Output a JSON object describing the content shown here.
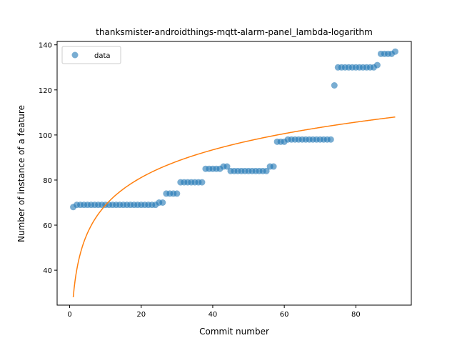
{
  "chart_data": {
    "type": "scatter",
    "title": "thanksmister-androidthings-mqtt-alarm-panel_lambda-logarithm",
    "xlabel": "Commit number",
    "ylabel": "Number of instance of a feature",
    "xlim": [
      -3.5,
      95.5
    ],
    "ylim": [
      24.5,
      141.5
    ],
    "xticks": [
      0,
      20,
      40,
      60,
      80
    ],
    "yticks": [
      40,
      60,
      80,
      100,
      120,
      140
    ],
    "legend": {
      "placement": "top-left",
      "entries": [
        "data"
      ]
    },
    "grid": false,
    "colors": {
      "data": "#1f77b4",
      "fit": "#ff7f0e"
    },
    "series": [
      {
        "name": "data",
        "kind": "scatter",
        "x": [
          1,
          2,
          3,
          4,
          5,
          6,
          7,
          8,
          9,
          10,
          11,
          12,
          13,
          14,
          15,
          16,
          17,
          18,
          19,
          20,
          21,
          22,
          23,
          24,
          25,
          26,
          27,
          28,
          29,
          30,
          31,
          32,
          33,
          34,
          35,
          36,
          37,
          38,
          39,
          40,
          41,
          42,
          43,
          44,
          45,
          46,
          47,
          48,
          49,
          50,
          51,
          52,
          53,
          54,
          55,
          56,
          57,
          58,
          59,
          60,
          61,
          62,
          63,
          64,
          65,
          66,
          67,
          68,
          69,
          70,
          71,
          72,
          73,
          74,
          75,
          76,
          77,
          78,
          79,
          80,
          81,
          82,
          83,
          84,
          85,
          86,
          87,
          88,
          89,
          90,
          91
        ],
        "y": [
          68,
          69,
          69,
          69,
          69,
          69,
          69,
          69,
          69,
          69,
          69,
          69,
          69,
          69,
          69,
          69,
          69,
          69,
          69,
          69,
          69,
          69,
          69,
          69,
          70,
          70,
          74,
          74,
          74,
          74,
          79,
          79,
          79,
          79,
          79,
          79,
          79,
          85,
          85,
          85,
          85,
          85,
          86,
          86,
          84,
          84,
          84,
          84,
          84,
          84,
          84,
          84,
          84,
          84,
          84,
          86,
          86,
          97,
          97,
          97,
          98,
          98,
          98,
          98,
          98,
          98,
          98,
          98,
          98,
          98,
          98,
          98,
          98,
          122,
          130,
          130,
          130,
          130,
          130,
          130,
          130,
          130,
          130,
          130,
          130,
          131,
          136,
          136,
          136,
          136,
          137
        ]
      },
      {
        "kind": "line",
        "fit_a": 28,
        "fit_b": 17.73
      }
    ]
  }
}
